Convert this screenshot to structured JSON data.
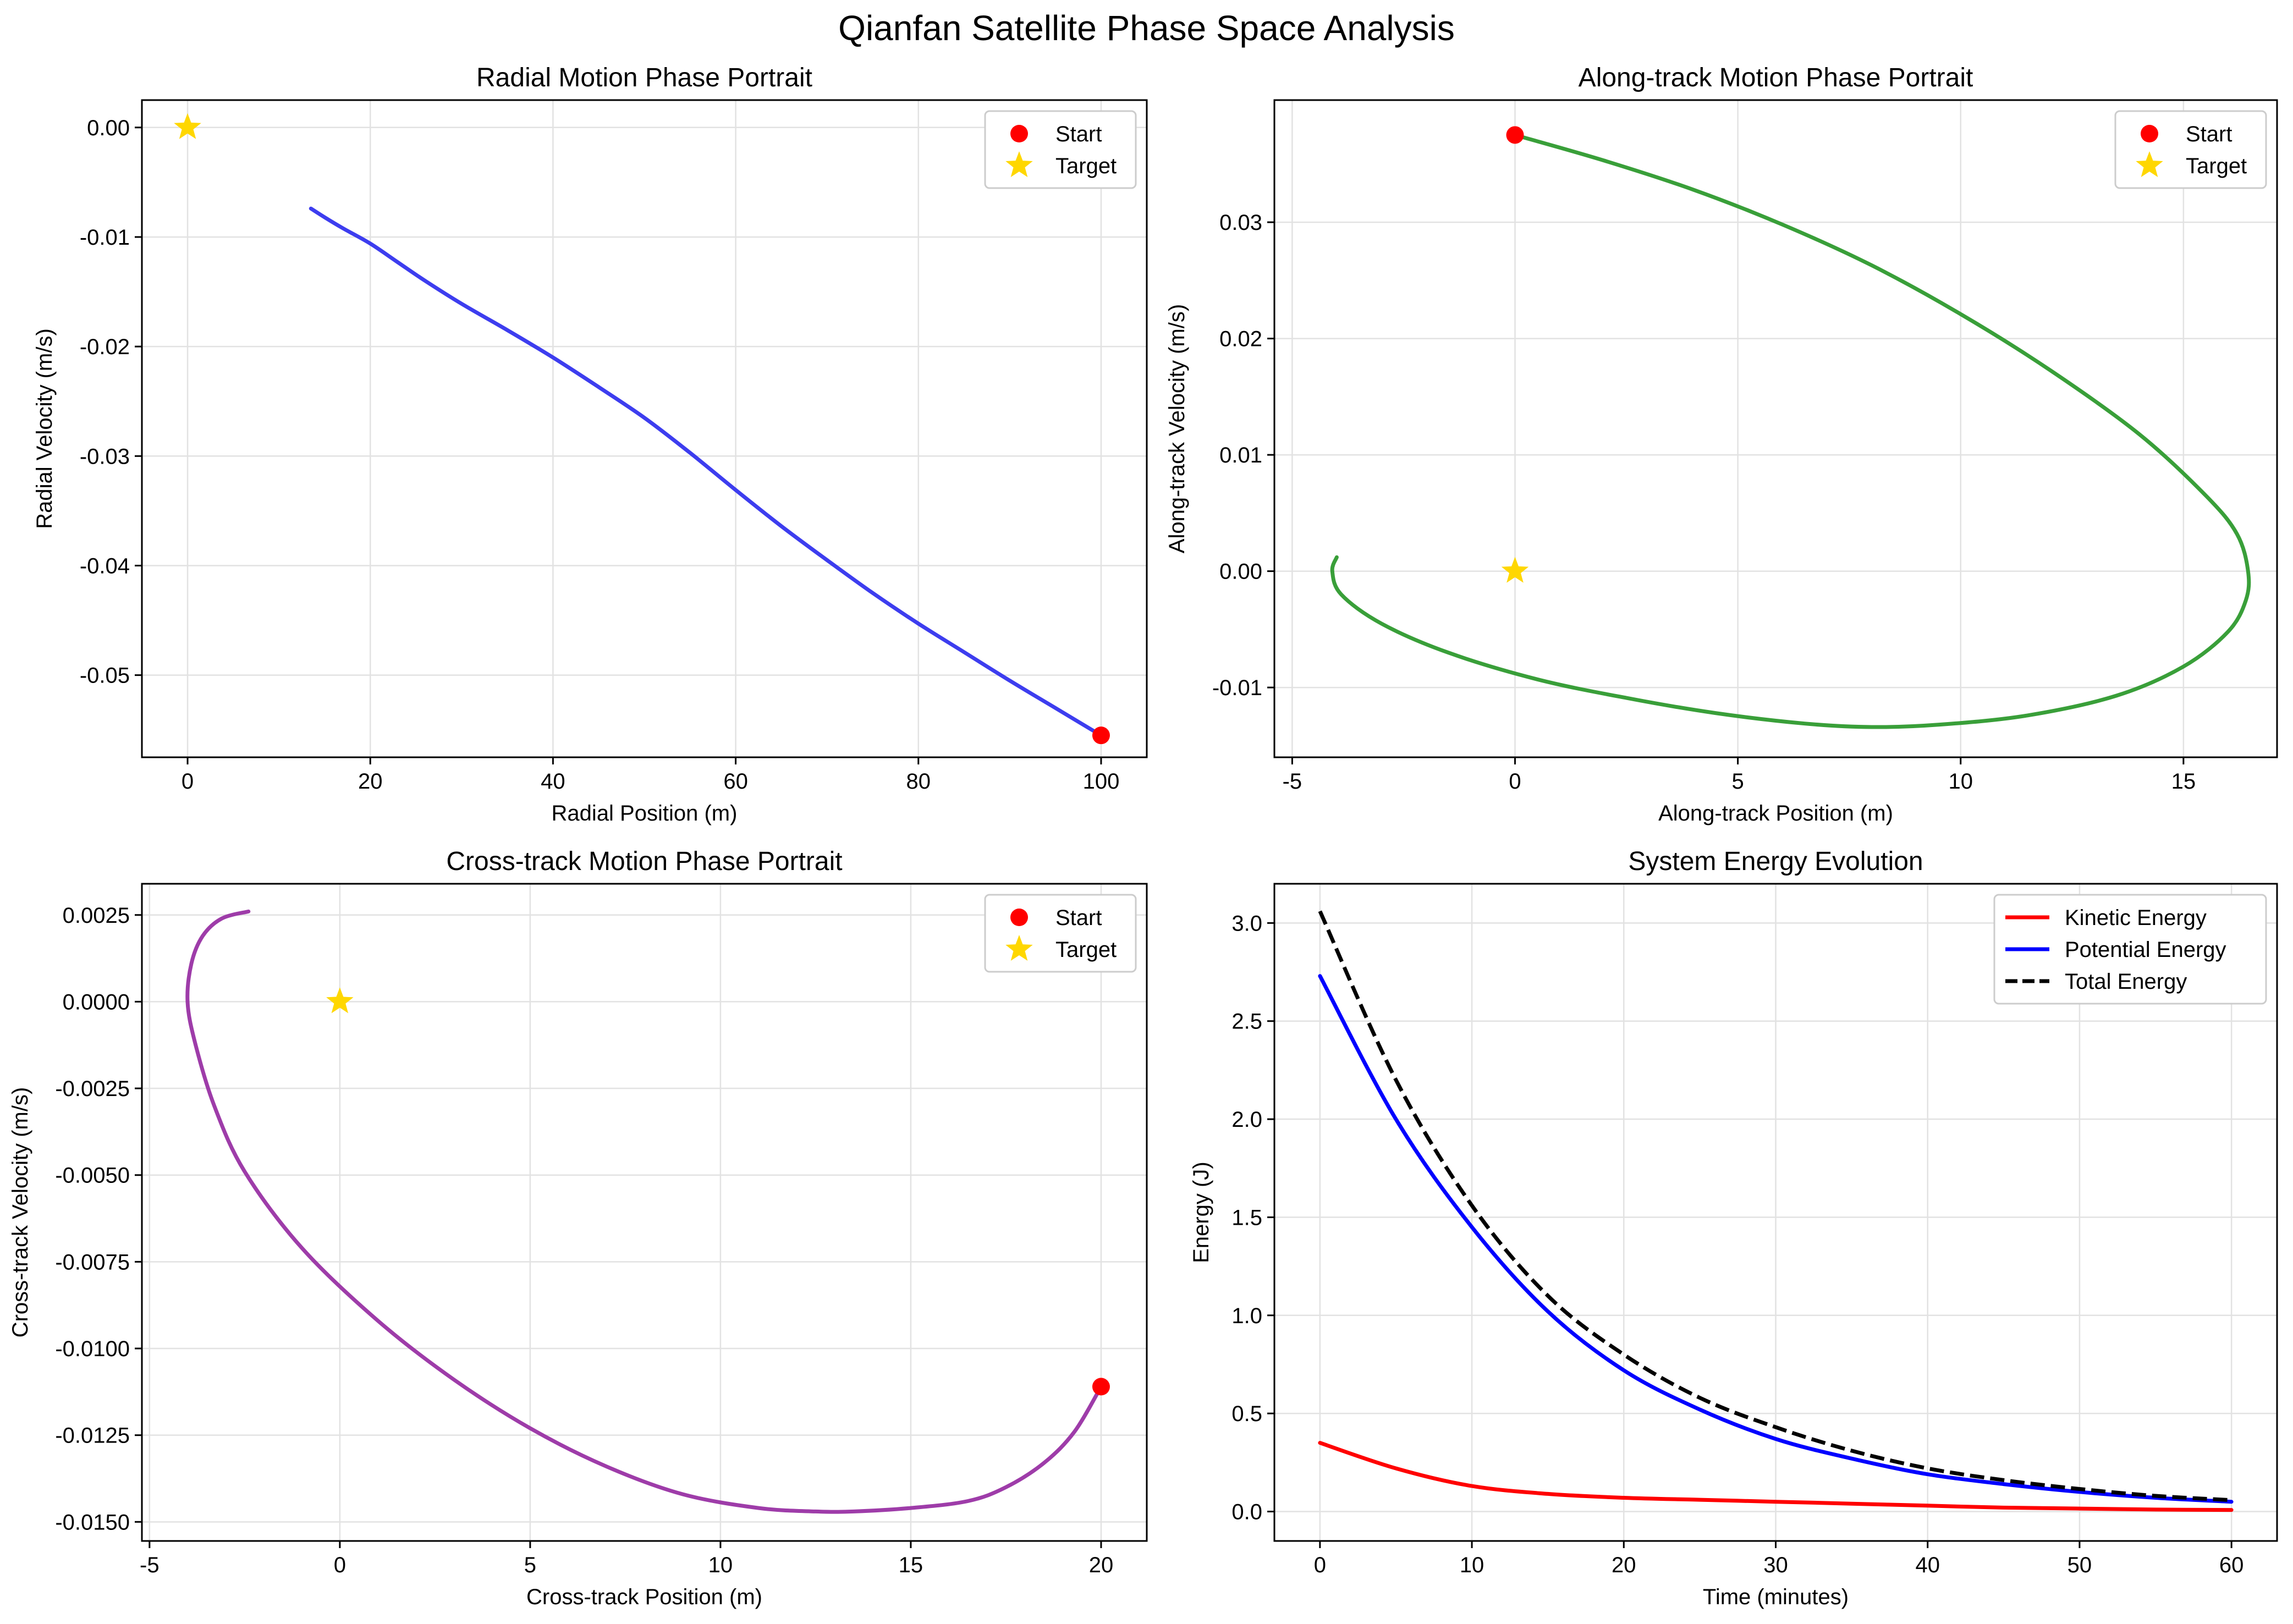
{
  "figure": {
    "title": "Qianfan Satellite Phase Space Analysis"
  },
  "colors": {
    "start": "#ff0000",
    "target": "#ffd700",
    "radial": "#3333ee",
    "along": "#2e9a2e",
    "cross": "#9932a4",
    "kinetic": "#ff0000",
    "potential": "#0000ff",
    "total": "#000000"
  },
  "chart_data": [
    {
      "type": "line",
      "title": "Radial Motion Phase Portrait",
      "xlabel": "Radial Position (m)",
      "ylabel": "Radial Velocity (m/s)",
      "xlim": [
        -5,
        105
      ],
      "ylim": [
        -0.0575,
        0.0025
      ],
      "xticks": [
        0,
        20,
        40,
        60,
        80,
        100
      ],
      "xtick_labels": [
        "0",
        "20",
        "40",
        "60",
        "80",
        "100"
      ],
      "yticks": [
        0,
        -0.01,
        -0.02,
        -0.03,
        -0.04,
        -0.05
      ],
      "ytick_labels": [
        "0.00",
        "-0.01",
        "-0.02",
        "-0.03",
        "-0.04",
        "-0.05"
      ],
      "grid": true,
      "legend_position": "top-right",
      "series": [
        {
          "role": "trajectory",
          "color": "#3333ee",
          "x": [
            13.5,
            15,
            17,
            20,
            23,
            26,
            30,
            35,
            40,
            45,
            50,
            55,
            60,
            65,
            70,
            75,
            80,
            85,
            90,
            95,
            100
          ],
          "y": [
            -0.0074,
            -0.0082,
            -0.0092,
            -0.0106,
            -0.0123,
            -0.014,
            -0.0161,
            -0.0185,
            -0.021,
            -0.0237,
            -0.0265,
            -0.0297,
            -0.0331,
            -0.0364,
            -0.0395,
            -0.0425,
            -0.0453,
            -0.0479,
            -0.0505,
            -0.053,
            -0.0555
          ]
        }
      ],
      "markers": [
        {
          "label": "Start",
          "shape": "circle",
          "x": 100,
          "y": -0.0555,
          "color": "#ff0000"
        },
        {
          "label": "Target",
          "shape": "star",
          "x": 0,
          "y": 0.0,
          "color": "#ffd700"
        }
      ]
    },
    {
      "type": "line",
      "title": "Along-track Motion Phase Portrait",
      "xlabel": "Along-track Position (m)",
      "ylabel": "Along-track Velocity (m/s)",
      "xlim": [
        -5.4,
        17.1
      ],
      "ylim": [
        -0.016,
        0.0405
      ],
      "xticks": [
        -5,
        0,
        5,
        10,
        15
      ],
      "xtick_labels": [
        "-5",
        "0",
        "5",
        "10",
        "15"
      ],
      "yticks": [
        0.03,
        0.02,
        0.01,
        0.0,
        -0.01
      ],
      "ytick_labels": [
        "0.03",
        "0.02",
        "0.01",
        "0.00",
        "-0.01"
      ],
      "grid": true,
      "legend_position": "top-right",
      "series": [
        {
          "role": "trajectory",
          "color": "#2e9a2e",
          "x": [
            0,
            2,
            4,
            6,
            8,
            10,
            12,
            14,
            15.5,
            16.2,
            16.45,
            16.4,
            16.0,
            15.0,
            13.5,
            11.5,
            9.5,
            8.0,
            6.5,
            4.5,
            2.5,
            0.5,
            -1.5,
            -3.0,
            -3.9,
            -4.1,
            -4.0
          ],
          "y": [
            0.0375,
            0.0353,
            0.0328,
            0.0298,
            0.0263,
            0.0221,
            0.0173,
            0.0118,
            0.0065,
            0.0032,
            0.0,
            -0.0025,
            -0.0052,
            -0.0082,
            -0.0107,
            -0.0124,
            -0.0132,
            -0.0134,
            -0.0131,
            -0.0122,
            -0.0109,
            -0.0093,
            -0.007,
            -0.0045,
            -0.002,
            0.0,
            0.0012
          ]
        }
      ],
      "markers": [
        {
          "label": "Start",
          "shape": "circle",
          "x": 0,
          "y": 0.0375,
          "color": "#ff0000"
        },
        {
          "label": "Target",
          "shape": "star",
          "x": 0,
          "y": 0.0,
          "color": "#ffd700"
        }
      ]
    },
    {
      "type": "line",
      "title": "Cross-track Motion Phase Portrait",
      "xlabel": "Cross-track Position (m)",
      "ylabel": "Cross-track Velocity (m/s)",
      "xlim": [
        -5.2,
        21.2
      ],
      "ylim": [
        -0.01555,
        0.0034
      ],
      "xticks": [
        -5,
        0,
        5,
        10,
        15,
        20
      ],
      "xtick_labels": [
        "-5",
        "0",
        "5",
        "10",
        "15",
        "20"
      ],
      "yticks": [
        0.0025,
        0.0,
        -0.0025,
        -0.005,
        -0.0075,
        -0.01,
        -0.0125,
        -0.015
      ],
      "ytick_labels": [
        "0.0025",
        "0.0000",
        "-0.0025",
        "-0.0050",
        "-0.0075",
        "-0.0100",
        "-0.0125",
        "-0.0150"
      ],
      "grid": true,
      "legend_position": "top-right",
      "series": [
        {
          "role": "trajectory",
          "color": "#9932a4",
          "x": [
            20.0,
            19.3,
            18.5,
            17.5,
            16.5,
            15.0,
            13.5,
            12.5,
            11.0,
            9.0,
            7.0,
            5.0,
            3.0,
            1.0,
            -1.0,
            -2.5,
            -3.3,
            -3.8,
            -4.0,
            -3.9,
            -3.6,
            -3.1,
            -2.4
          ],
          "y": [
            -0.0111,
            -0.0124,
            -0.0133,
            -0.014,
            -0.0144,
            -0.0146,
            -0.0147,
            -0.0147,
            -0.0146,
            -0.0142,
            -0.0134,
            -0.0123,
            -0.0109,
            -0.0092,
            -0.0071,
            -0.0049,
            -0.003,
            -0.0012,
            0.0,
            0.0011,
            0.0019,
            0.0024,
            0.0026
          ]
        }
      ],
      "markers": [
        {
          "label": "Start",
          "shape": "circle",
          "x": 20,
          "y": -0.0111,
          "color": "#ff0000"
        },
        {
          "label": "Target",
          "shape": "star",
          "x": 0,
          "y": 0.0,
          "color": "#ffd700"
        }
      ]
    },
    {
      "type": "line",
      "title": "System Energy Evolution",
      "xlabel": "Time (minutes)",
      "ylabel": "Energy (J)",
      "xlim": [
        -3,
        63
      ],
      "ylim": [
        -0.15,
        3.2
      ],
      "xticks": [
        0,
        10,
        20,
        30,
        40,
        50,
        60
      ],
      "xtick_labels": [
        "0",
        "10",
        "20",
        "30",
        "40",
        "50",
        "60"
      ],
      "yticks": [
        0.0,
        0.5,
        1.0,
        1.5,
        2.0,
        2.5,
        3.0
      ],
      "ytick_labels": [
        "0.0",
        "0.5",
        "1.0",
        "1.5",
        "2.0",
        "2.5",
        "3.0"
      ],
      "grid": true,
      "legend_position": "top-right",
      "series": [
        {
          "name": "Kinetic Energy",
          "color": "#ff0000",
          "dash": "solid",
          "x": [
            0,
            5,
            10,
            15,
            20,
            25,
            30,
            35,
            40,
            45,
            50,
            55,
            60
          ],
          "y": [
            0.35,
            0.22,
            0.13,
            0.09,
            0.07,
            0.06,
            0.05,
            0.04,
            0.03,
            0.02,
            0.015,
            0.01,
            0.008
          ]
        },
        {
          "name": "Potential Energy",
          "color": "#0000ff",
          "dash": "solid",
          "x": [
            0,
            5,
            10,
            15,
            20,
            25,
            30,
            35,
            40,
            45,
            50,
            55,
            60
          ],
          "y": [
            2.73,
            2.0,
            1.45,
            1.02,
            0.72,
            0.52,
            0.37,
            0.27,
            0.19,
            0.14,
            0.1,
            0.07,
            0.05
          ]
        },
        {
          "name": "Total Energy",
          "color": "#000000",
          "dash": "dashed",
          "x": [
            0,
            5,
            10,
            15,
            20,
            25,
            30,
            35,
            40,
            45,
            50,
            55,
            60
          ],
          "y": [
            3.06,
            2.2,
            1.56,
            1.1,
            0.8,
            0.58,
            0.43,
            0.31,
            0.22,
            0.16,
            0.115,
            0.08,
            0.058
          ]
        }
      ]
    }
  ]
}
